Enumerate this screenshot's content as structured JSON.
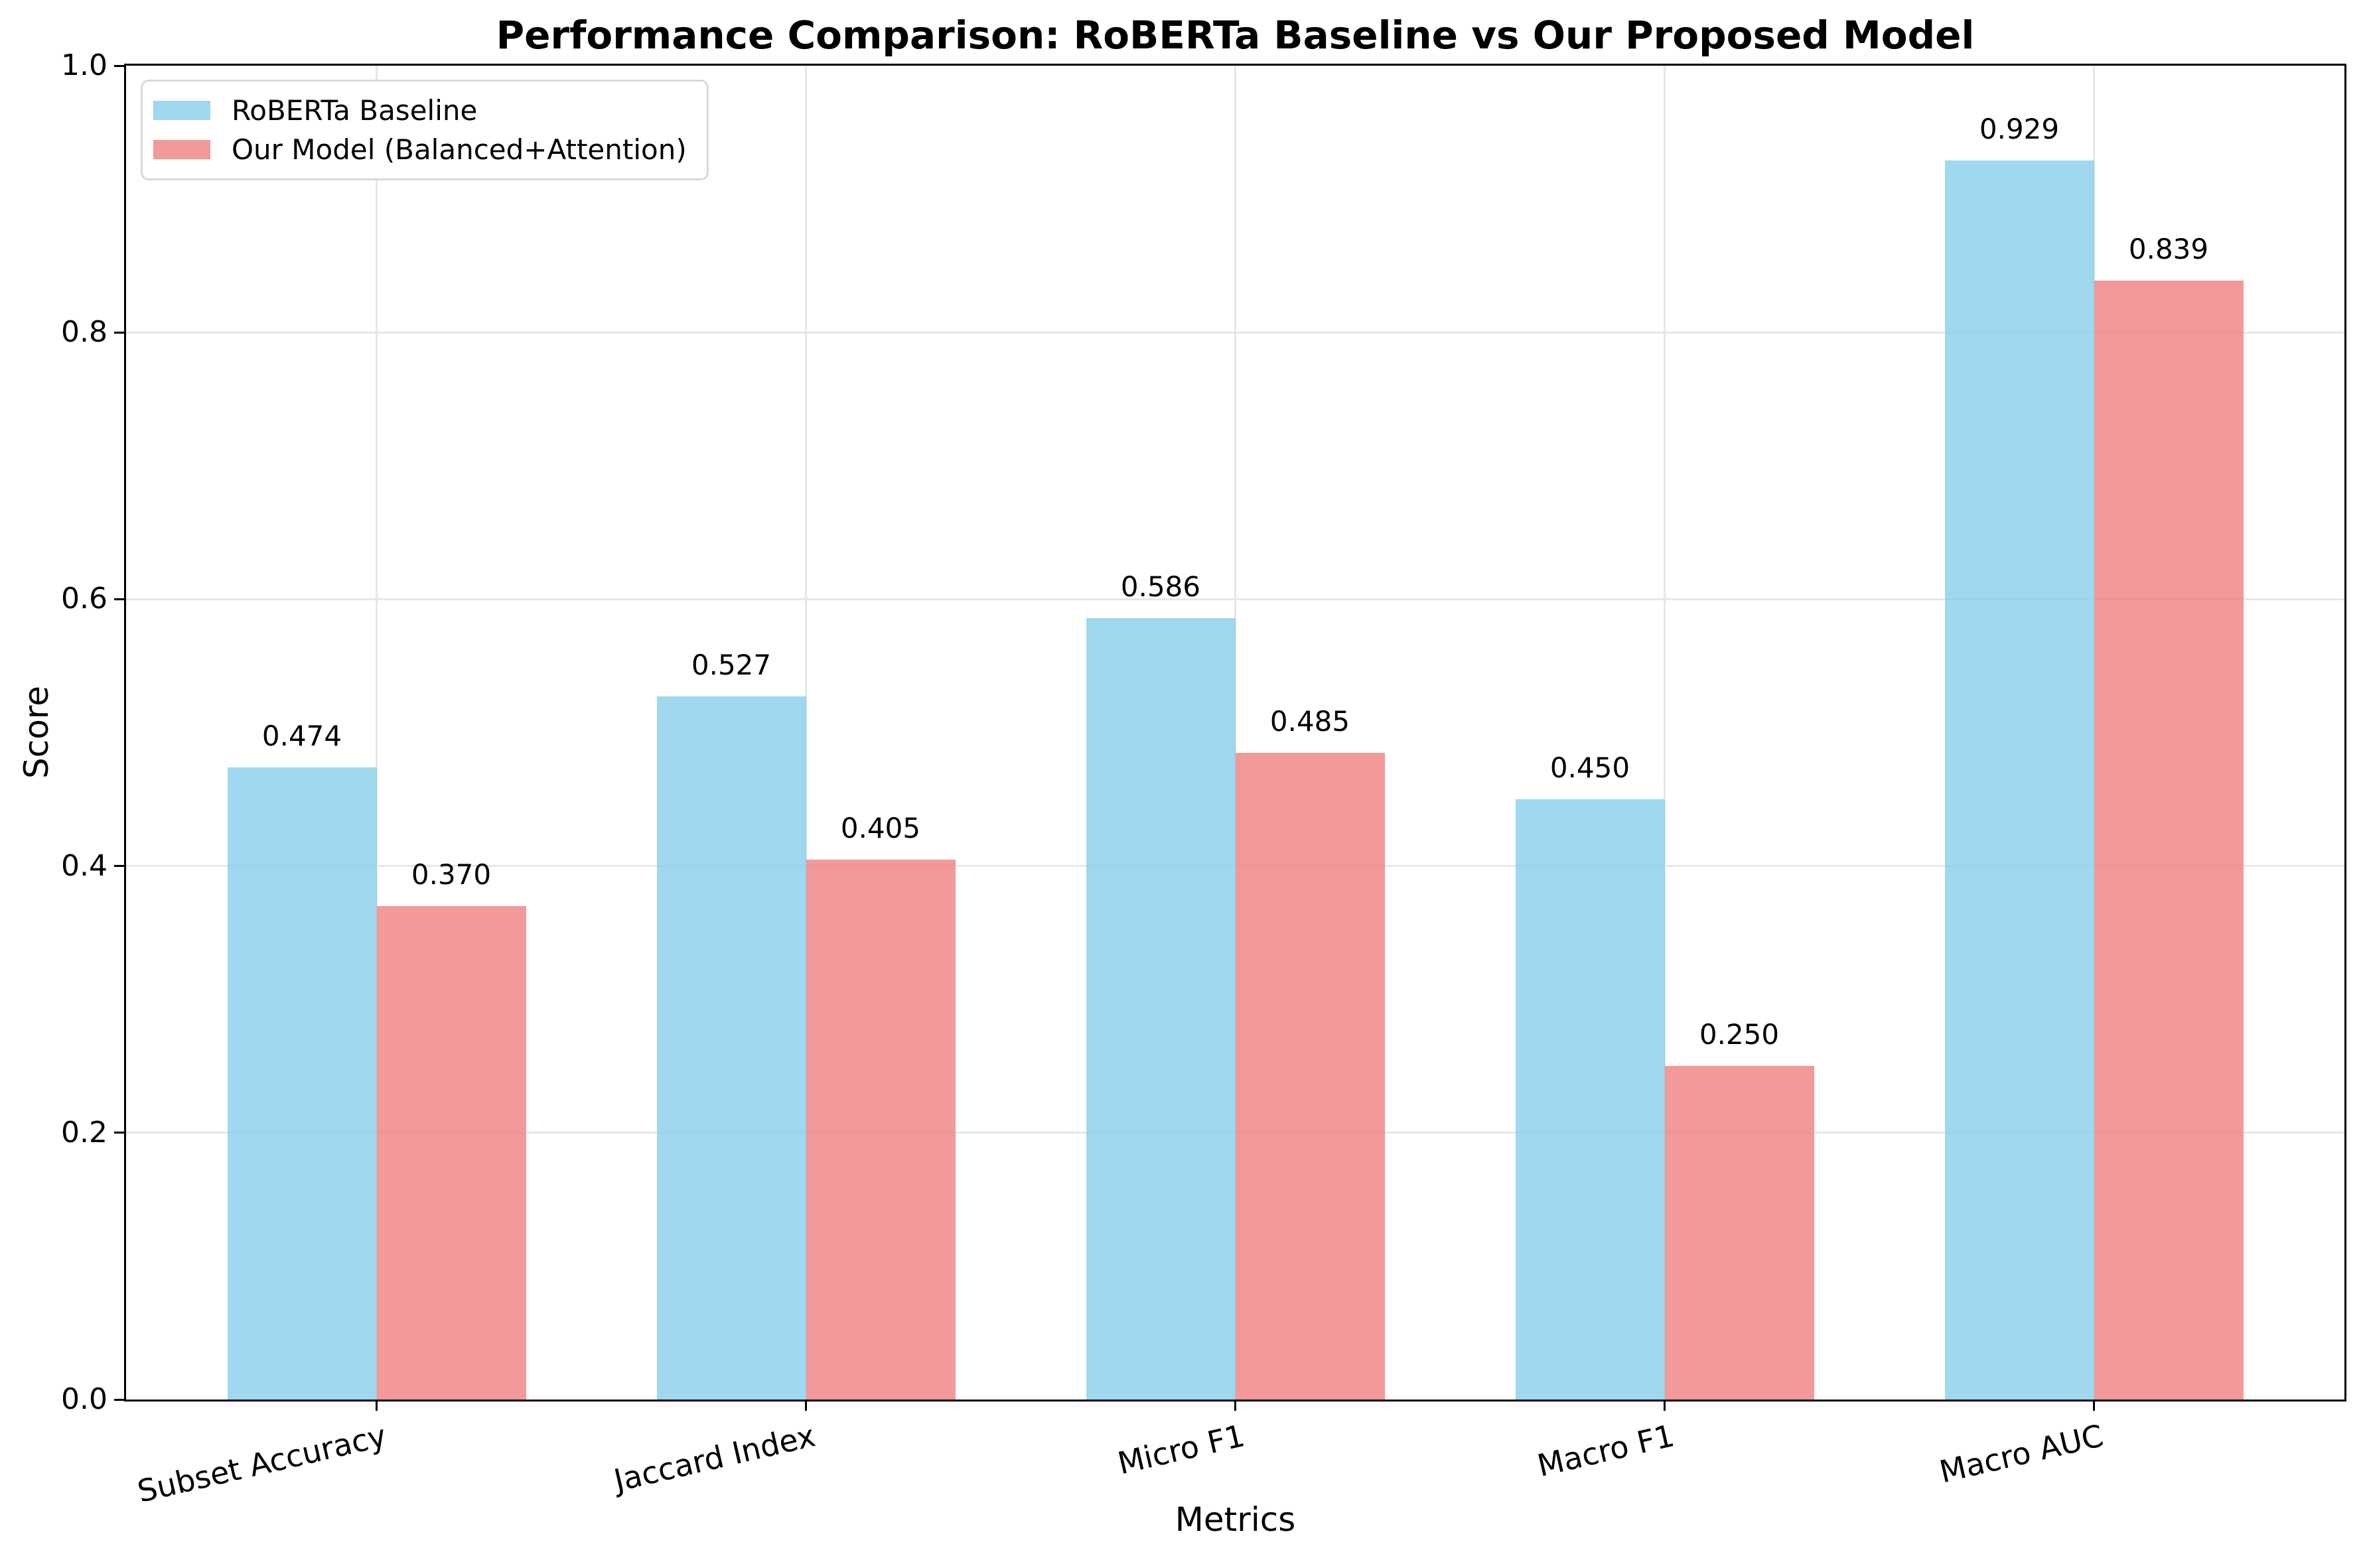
{
  "chart_data": {
    "type": "bar",
    "title": "Performance Comparison: RoBERTa Baseline vs Our Proposed Model",
    "xlabel": "Metrics",
    "ylabel": "Score",
    "ylim": [
      0.0,
      1.0
    ],
    "ytick_labels": [
      "0.0",
      "0.2",
      "0.4",
      "0.6",
      "0.8",
      "1.0"
    ],
    "ytick_values": [
      0.0,
      0.2,
      0.4,
      0.6,
      0.8,
      1.0
    ],
    "grid": true,
    "grid_axes": "both",
    "legend_position": "upper left",
    "categories": [
      "Subset Accuracy",
      "Jaccard Index",
      "Micro F1",
      "Macro F1",
      "Macro AUC"
    ],
    "series": [
      {
        "name": "RoBERTa Baseline",
        "color": "#87CEEB",
        "fill_alpha": 0.8,
        "values": [
          0.474,
          0.527,
          0.586,
          0.45,
          0.929
        ],
        "value_labels": [
          "0.474",
          "0.527",
          "0.586",
          "0.450",
          "0.929"
        ]
      },
      {
        "name": "Our Model (Balanced+Attention)",
        "color": "#F08080",
        "fill_alpha": 0.8,
        "values": [
          0.37,
          0.405,
          0.485,
          0.25,
          0.839
        ],
        "value_labels": [
          "0.370",
          "0.405",
          "0.485",
          "0.250",
          "0.839"
        ]
      }
    ],
    "colors": {
      "grid": "#E7E7E7",
      "axis": "#000000",
      "legend_border": "#D9D9D9",
      "text": "#000000"
    }
  }
}
